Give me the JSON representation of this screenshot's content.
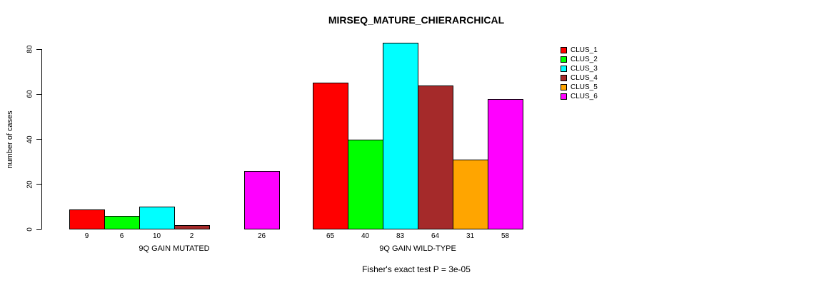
{
  "chart_data": {
    "type": "bar",
    "title": "MIRSEQ_MATURE_CHIERARCHICAL",
    "ylabel": "number of cases",
    "xlabel": "",
    "ylim": [
      0,
      80
    ],
    "yticks": [
      0,
      20,
      40,
      60,
      80
    ],
    "grid": false,
    "legend_position": "right",
    "categories": [
      "9Q GAIN MUTATED",
      "9Q GAIN WILD-TYPE"
    ],
    "series": [
      {
        "name": "CLUS_1",
        "color": "#FF0000",
        "values": [
          9,
          65
        ]
      },
      {
        "name": "CLUS_2",
        "color": "#00FF00",
        "values": [
          6,
          40
        ]
      },
      {
        "name": "CLUS_3",
        "color": "#00FFFF",
        "values": [
          10,
          83
        ]
      },
      {
        "name": "CLUS_4",
        "color": "#A52A2A",
        "values": [
          2,
          64
        ]
      },
      {
        "name": "CLUS_5",
        "color": "#FFA500",
        "values": [
          0,
          31
        ]
      },
      {
        "name": "CLUS_6",
        "color": "#FF00FF",
        "values": [
          26,
          58
        ]
      }
    ],
    "bar_value_labels": [
      [
        "9",
        "6",
        "10",
        "2",
        "",
        "26"
      ],
      [
        "65",
        "40",
        "83",
        "64",
        "31",
        "58"
      ]
    ],
    "annotation": "Fisher's exact test P = 3e-05"
  },
  "colors": {
    "background": "#FFFFFF",
    "axis": "#000000",
    "bar_border": "#000000"
  }
}
